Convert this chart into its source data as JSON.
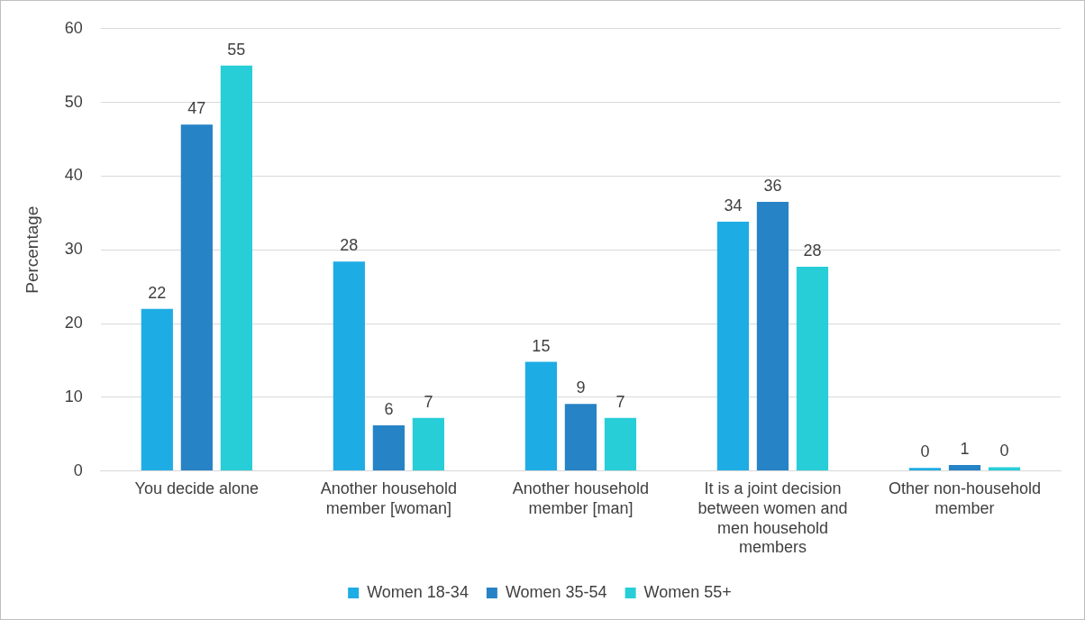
{
  "chart_data": {
    "type": "bar",
    "ylabel": "Percentage",
    "categories": [
      "You decide alone",
      "Another household member [woman]",
      "Another household member [man]",
      "It is a joint decision between women and men household members",
      "Other non-household member"
    ],
    "series": [
      {
        "name": "Women 18-34",
        "color": "#1eace4",
        "values": [
          22,
          28.4,
          14.8,
          33.8,
          0.4
        ],
        "value_labels": [
          "22",
          "28",
          "15",
          "34",
          "0"
        ]
      },
      {
        "name": "Women 35-54",
        "color": "#2683c6",
        "values": [
          47,
          6.2,
          9.1,
          36.5,
          0.8
        ],
        "value_labels": [
          "47",
          "6",
          "9",
          "36",
          "1"
        ]
      },
      {
        "name": "Women 55+",
        "color": "#27ced7",
        "values": [
          55,
          7.2,
          7.2,
          27.7,
          0.5
        ],
        "value_labels": [
          "55",
          "7",
          "7",
          "28",
          "0"
        ]
      }
    ],
    "ylim": [
      0,
      60
    ],
    "yticks": [
      0,
      10,
      20,
      30,
      40,
      50,
      60
    ],
    "grid": "y",
    "legend": "bottom"
  }
}
